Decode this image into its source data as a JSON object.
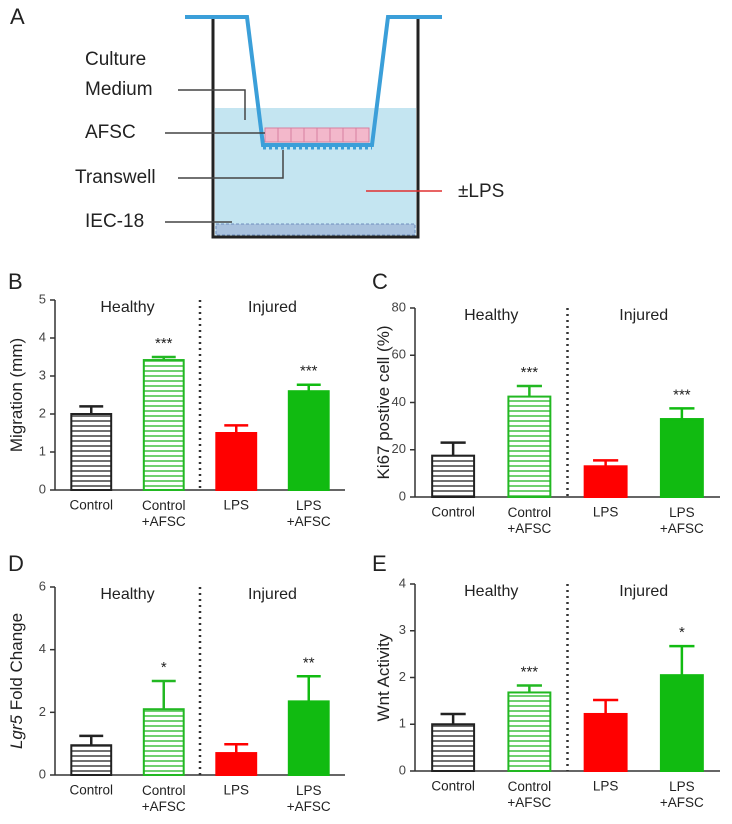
{
  "panel_a": {
    "letter": "A",
    "labels": [
      "Culture",
      "Medium",
      "AFSC",
      "Transwell",
      "IEC-18",
      "±LPS"
    ]
  },
  "chart_data": [
    {
      "type": "bar",
      "panel": "B",
      "ylabel": "Migration (mm)",
      "groups": [
        "Healthy",
        "Injured"
      ],
      "categories": [
        "Control",
        "Control\n+AFSC",
        "LPS",
        "LPS\n+AFSC"
      ],
      "values": [
        2.0,
        3.42,
        1.5,
        2.6
      ],
      "errors": [
        0.2,
        0.08,
        0.2,
        0.17
      ],
      "annotations": [
        null,
        "***",
        null,
        "***"
      ],
      "colors": [
        "#222222",
        "#22b822",
        "#ff0000",
        "#11bb11"
      ],
      "hatched": [
        true,
        true,
        false,
        false
      ],
      "ylim": [
        0,
        5
      ],
      "yticks": [
        0,
        1,
        2,
        3,
        4,
        5
      ]
    },
    {
      "type": "bar",
      "panel": "C",
      "ylabel": "Ki67 postive cell (%)",
      "groups": [
        "Healthy",
        "Injured"
      ],
      "categories": [
        "Control",
        "Control\n+AFSC",
        "LPS",
        "LPS\n+AFSC"
      ],
      "values": [
        17.5,
        42.5,
        13,
        33
      ],
      "errors": [
        5.5,
        4.5,
        2.5,
        4.5
      ],
      "annotations": [
        null,
        "***",
        null,
        "***"
      ],
      "colors": [
        "#222222",
        "#22b822",
        "#ff0000",
        "#11bb11"
      ],
      "hatched": [
        true,
        true,
        false,
        false
      ],
      "ylim": [
        0,
        80
      ],
      "yticks": [
        0,
        20,
        40,
        60,
        80
      ]
    },
    {
      "type": "bar",
      "panel": "D",
      "ylabel_italic": "Lgr5",
      "ylabel": "Fold Change",
      "groups": [
        "Healthy",
        "Injured"
      ],
      "categories": [
        "Control",
        "Control\n+AFSC",
        "LPS",
        "LPS\n+AFSC"
      ],
      "values": [
        0.95,
        2.1,
        0.7,
        2.35
      ],
      "errors": [
        0.3,
        0.9,
        0.28,
        0.8
      ],
      "annotations": [
        null,
        "*",
        null,
        "**"
      ],
      "colors": [
        "#222222",
        "#22b822",
        "#ff0000",
        "#11bb11"
      ],
      "hatched": [
        true,
        true,
        false,
        false
      ],
      "ylim": [
        0,
        6
      ],
      "yticks": [
        0,
        2,
        4,
        6
      ]
    },
    {
      "type": "bar",
      "panel": "E",
      "ylabel": "Wnt Activity",
      "groups": [
        "Healthy",
        "Injured"
      ],
      "categories": [
        "Control",
        "Control\n+AFSC",
        "LPS",
        "LPS\n+AFSC"
      ],
      "values": [
        1.0,
        1.68,
        1.22,
        2.05
      ],
      "errors": [
        0.22,
        0.15,
        0.3,
        0.62
      ],
      "annotations": [
        null,
        "***",
        null,
        "*"
      ],
      "colors": [
        "#222222",
        "#22b822",
        "#ff0000",
        "#11bb11"
      ],
      "hatched": [
        true,
        true,
        false,
        false
      ],
      "ylim": [
        0,
        4
      ],
      "yticks": [
        0,
        1,
        2,
        3,
        4
      ]
    }
  ]
}
